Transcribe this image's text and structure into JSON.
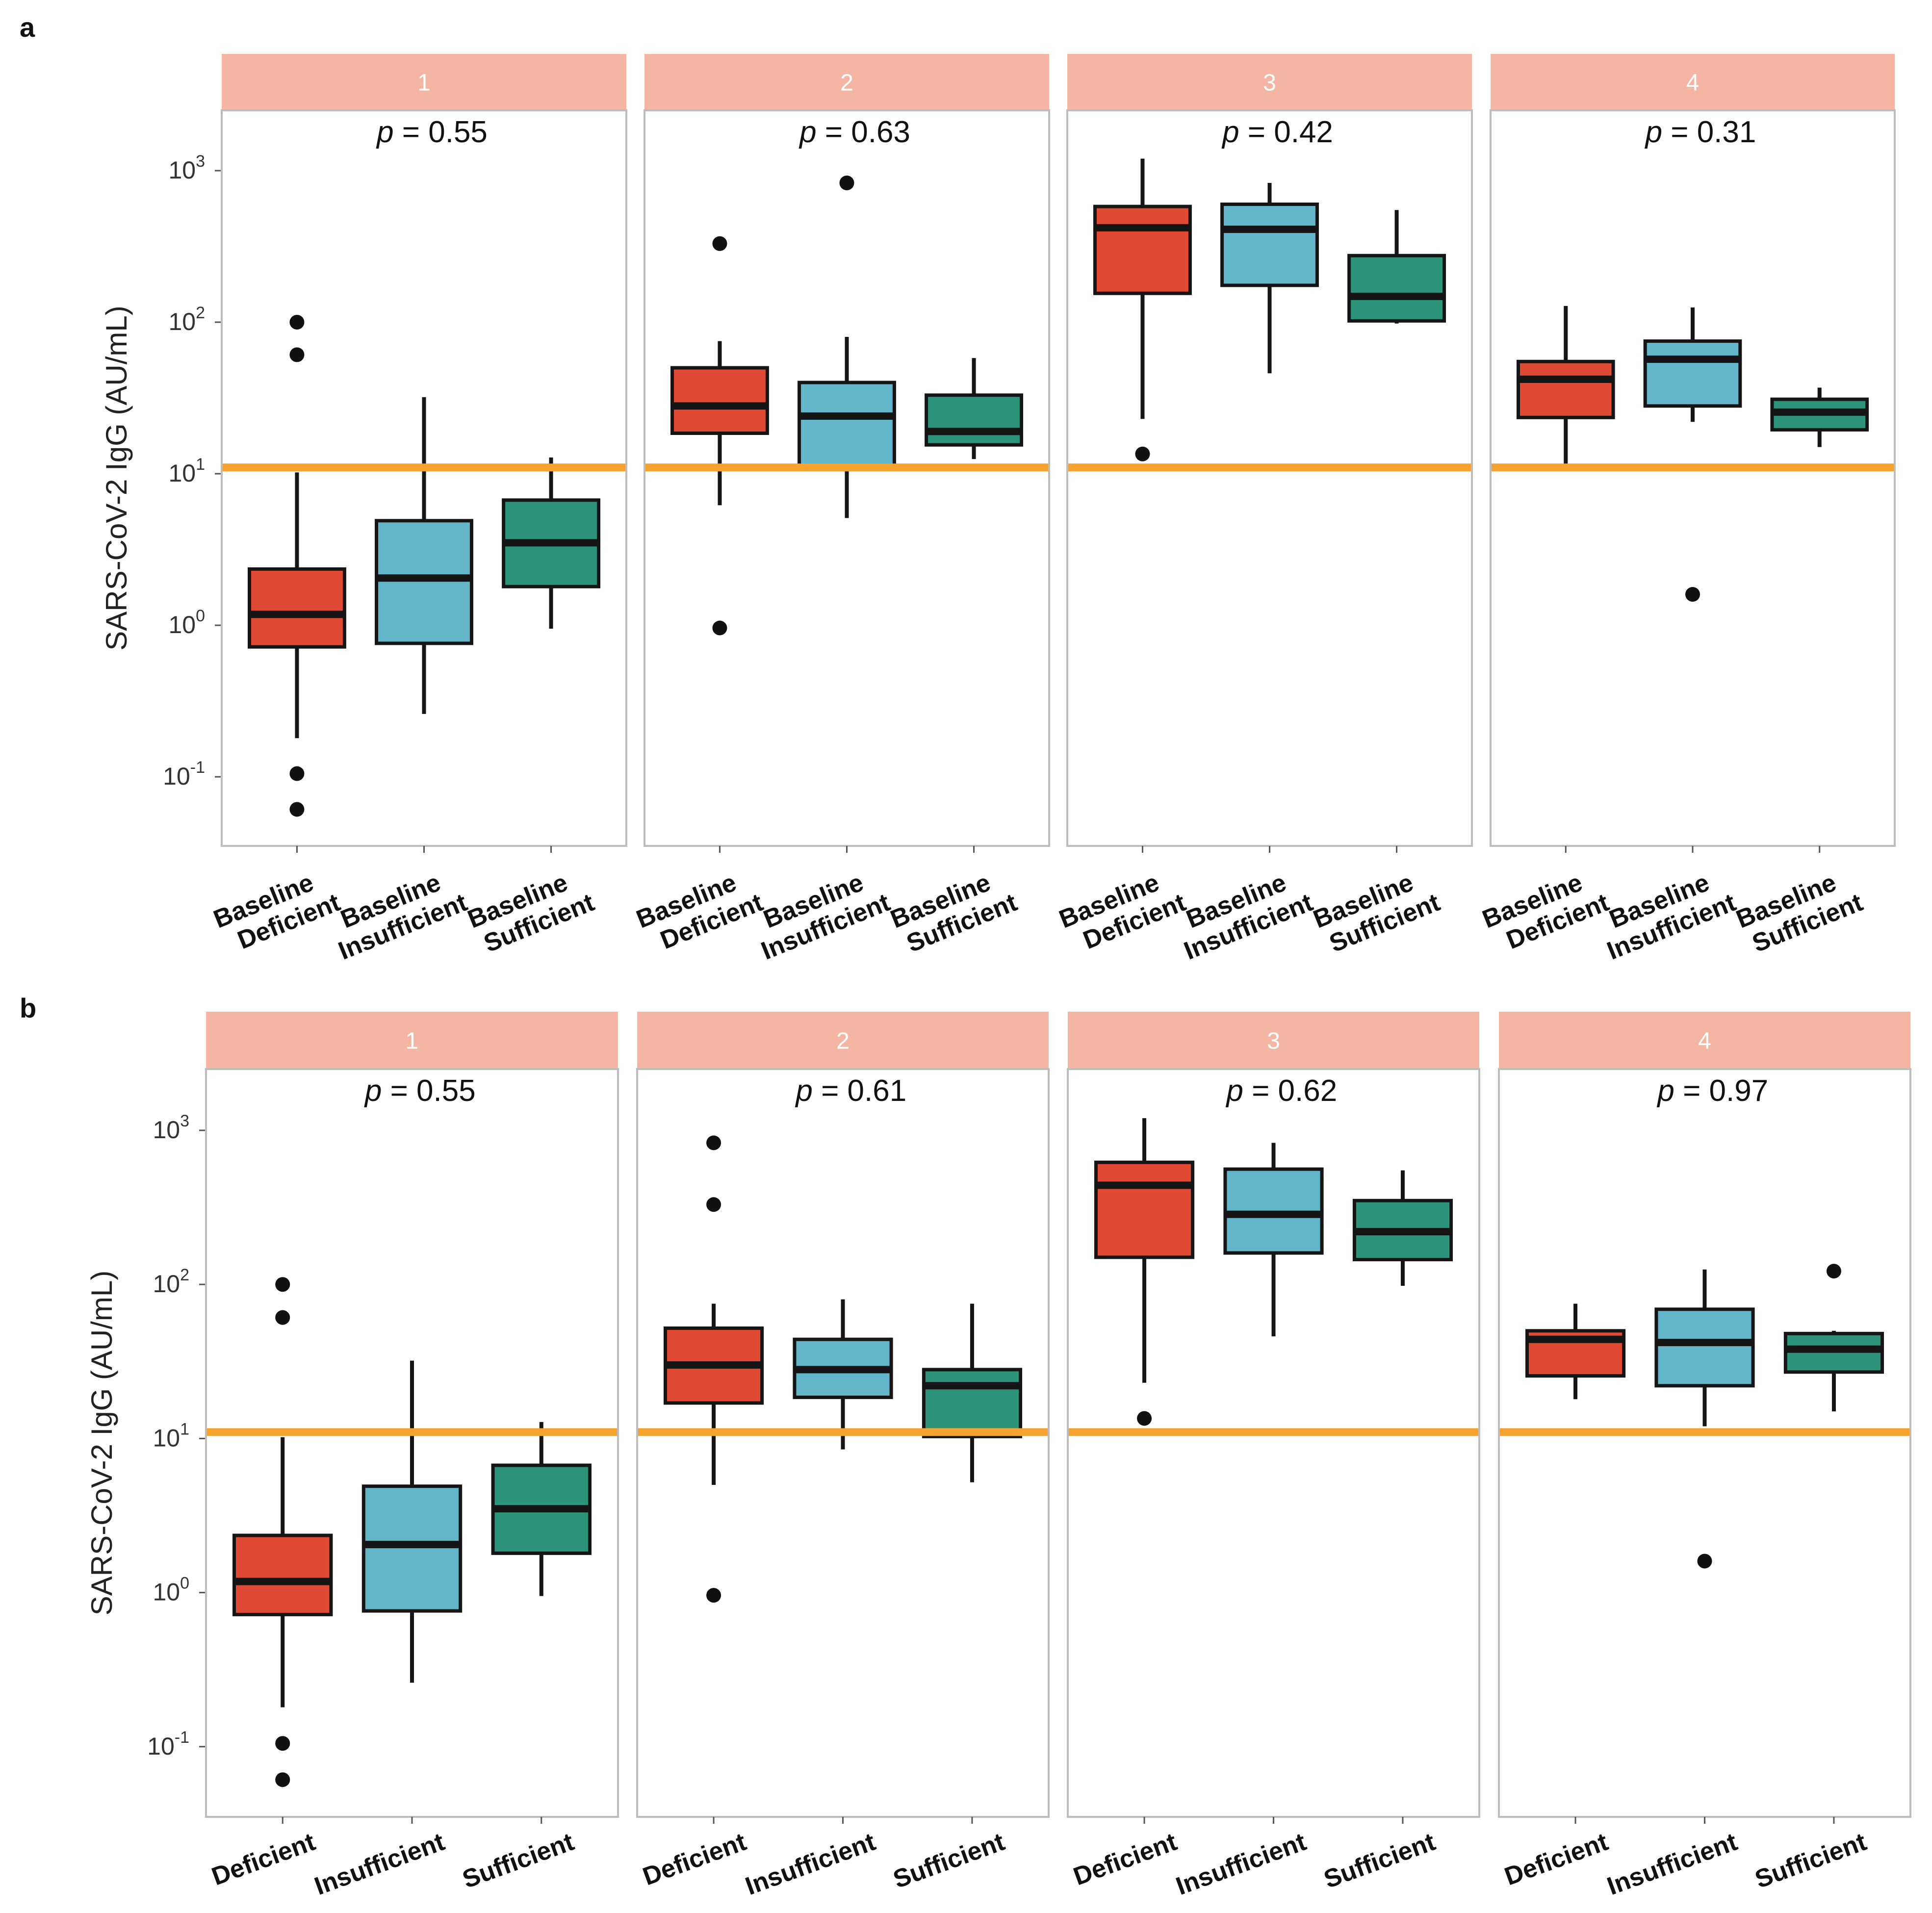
{
  "colors": {
    "strip": "#f4b6a3",
    "strip_text": "#ffffff",
    "threshold": "#f5a32e",
    "panel_border": "#bdbdbd",
    "box_outline": "#151515",
    "categories": [
      "#e04a34",
      "#63b6c9",
      "#2d937a"
    ]
  },
  "chart_data": [
    {
      "type": "boxplot",
      "panel_letter": "a",
      "ylabel": "SARS-CoV-2 IgG (AU/mL)",
      "yscale": "log10",
      "ylim": [
        0.035,
        2500
      ],
      "yticks": [
        0.1,
        1,
        10,
        100,
        1000
      ],
      "ytick_labels": [
        {
          "base": "10",
          "exp": "-1"
        },
        {
          "base": "10",
          "exp": "0"
        },
        {
          "base": "10",
          "exp": "1"
        },
        {
          "base": "10",
          "exp": "2"
        },
        {
          "base": "10",
          "exp": "3"
        }
      ],
      "threshold": 11,
      "categories": [
        [
          "Baseline",
          "Deficient"
        ],
        [
          "Baseline",
          "Insufficient"
        ],
        [
          "Baseline",
          "Sufficient"
        ]
      ],
      "facets": [
        {
          "label": "1",
          "p_prefix": "p",
          "p_value": "= 0.55",
          "boxes": [
            {
              "whislo": 0.18,
              "q1": 0.72,
              "med": 1.18,
              "q3": 2.35,
              "whishi": 10.2,
              "outliers": [
                100,
                61,
                0.105,
                0.061
              ]
            },
            {
              "whislo": 0.26,
              "q1": 0.76,
              "med": 2.05,
              "q3": 4.9,
              "whishi": 32,
              "outliers": []
            },
            {
              "whislo": 0.95,
              "q1": 1.8,
              "med": 3.5,
              "q3": 6.7,
              "whishi": 12.8,
              "outliers": []
            }
          ]
        },
        {
          "label": "2",
          "p_prefix": "p",
          "p_value": "= 0.63",
          "boxes": [
            {
              "whislo": 6.2,
              "q1": 18.5,
              "med": 28,
              "q3": 50,
              "whishi": 75,
              "outliers": [
                330,
                0.96
              ]
            },
            {
              "whislo": 5.1,
              "q1": 11.3,
              "med": 24,
              "q3": 40,
              "whishi": 80,
              "outliers": [
                830
              ]
            },
            {
              "whislo": 12.5,
              "q1": 15.5,
              "med": 19,
              "q3": 33,
              "whishi": 58,
              "outliers": []
            }
          ]
        },
        {
          "label": "3",
          "p_prefix": "p",
          "p_value": "= 0.42",
          "boxes": [
            {
              "whislo": 23,
              "q1": 155,
              "med": 420,
              "q3": 580,
              "whishi": 1200,
              "outliers": [
                13.5
              ]
            },
            {
              "whislo": 46,
              "q1": 175,
              "med": 410,
              "q3": 600,
              "whishi": 830,
              "outliers": []
            },
            {
              "whislo": 98,
              "q1": 102,
              "med": 148,
              "q3": 275,
              "whishi": 550,
              "outliers": []
            }
          ]
        },
        {
          "label": "4",
          "p_prefix": "p",
          "p_value": "= 0.31",
          "boxes": [
            {
              "whislo": 11.5,
              "q1": 23.5,
              "med": 42,
              "q3": 55,
              "whishi": 128,
              "outliers": []
            },
            {
              "whislo": 22,
              "q1": 28,
              "med": 57,
              "q3": 75,
              "whishi": 125,
              "outliers": [
                1.6
              ]
            },
            {
              "whislo": 15,
              "q1": 19.5,
              "med": 25.5,
              "q3": 31,
              "whishi": 37,
              "outliers": []
            }
          ]
        }
      ]
    },
    {
      "type": "boxplot",
      "panel_letter": "b",
      "ylabel": "SARS-CoV-2 IgG (AU/mL)",
      "yscale": "log10",
      "ylim": [
        0.035,
        2500
      ],
      "yticks": [
        0.1,
        1,
        10,
        100,
        1000
      ],
      "ytick_labels": [
        {
          "base": "10",
          "exp": "-1"
        },
        {
          "base": "10",
          "exp": "0"
        },
        {
          "base": "10",
          "exp": "1"
        },
        {
          "base": "10",
          "exp": "2"
        },
        {
          "base": "10",
          "exp": "3"
        }
      ],
      "threshold": 11,
      "categories": [
        [
          "Deficient"
        ],
        [
          "Insufficient"
        ],
        [
          "Sufficient"
        ]
      ],
      "facets": [
        {
          "label": "1",
          "p_prefix": "p",
          "p_value": "= 0.55",
          "boxes": [
            {
              "whislo": 0.18,
              "q1": 0.72,
              "med": 1.18,
              "q3": 2.35,
              "whishi": 10.2,
              "outliers": [
                100,
                61,
                0.105,
                0.061
              ]
            },
            {
              "whislo": 0.26,
              "q1": 0.76,
              "med": 2.05,
              "q3": 4.9,
              "whishi": 32,
              "outliers": []
            },
            {
              "whislo": 0.95,
              "q1": 1.8,
              "med": 3.5,
              "q3": 6.7,
              "whishi": 12.8,
              "outliers": []
            }
          ]
        },
        {
          "label": "2",
          "p_prefix": "p",
          "p_value": "= 0.61",
          "boxes": [
            {
              "whislo": 5,
              "q1": 17,
              "med": 30,
              "q3": 52,
              "whishi": 75,
              "outliers": [
                830,
                330,
                0.96
              ]
            },
            {
              "whislo": 8.5,
              "q1": 18.5,
              "med": 28,
              "q3": 44,
              "whishi": 80,
              "outliers": []
            },
            {
              "whislo": 5.2,
              "q1": 10.3,
              "med": 22,
              "q3": 28,
              "whishi": 75,
              "outliers": []
            }
          ]
        },
        {
          "label": "3",
          "p_prefix": "p",
          "p_value": "= 0.62",
          "boxes": [
            {
              "whislo": 23,
              "q1": 150,
              "med": 440,
              "q3": 620,
              "whishi": 1200,
              "outliers": [
                13.5
              ]
            },
            {
              "whislo": 46,
              "q1": 160,
              "med": 285,
              "q3": 560,
              "whishi": 830,
              "outliers": []
            },
            {
              "whislo": 98,
              "q1": 145,
              "med": 220,
              "q3": 350,
              "whishi": 550,
              "outliers": []
            }
          ]
        },
        {
          "label": "4",
          "p_prefix": "p",
          "p_value": "= 0.97",
          "boxes": [
            {
              "whislo": 18,
              "q1": 25.5,
              "med": 44,
              "q3": 50,
              "whishi": 75,
              "outliers": []
            },
            {
              "whislo": 12,
              "q1": 22,
              "med": 42,
              "q3": 69,
              "whishi": 125,
              "outliers": [
                1.6
              ]
            },
            {
              "whislo": 15,
              "q1": 27,
              "med": 38,
              "q3": 48,
              "whishi": 50,
              "outliers": [
                122
              ]
            }
          ]
        }
      ]
    }
  ]
}
